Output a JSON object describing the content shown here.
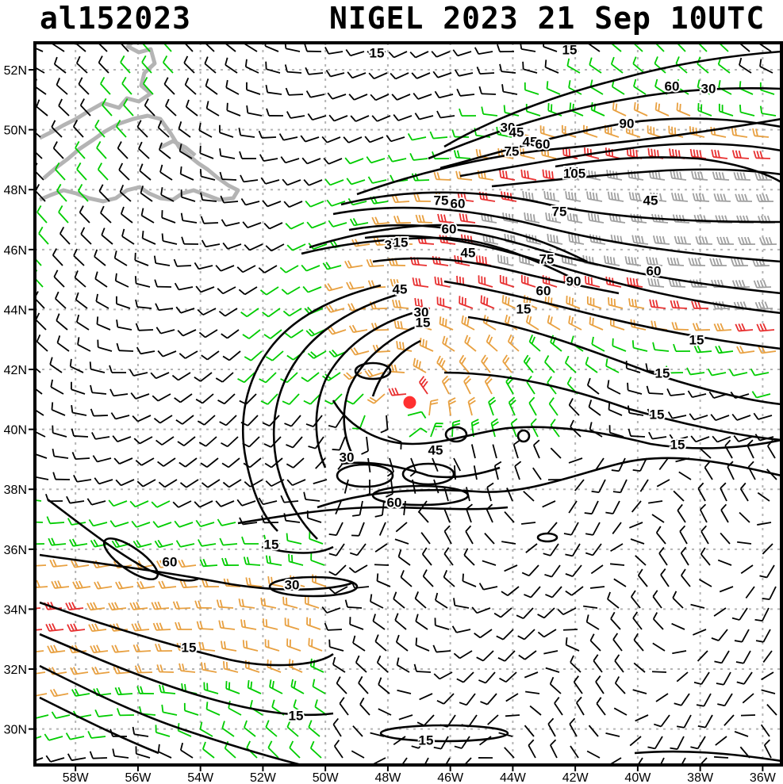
{
  "header": {
    "storm_id": "al152023",
    "storm_label": "NIGEL 2023 21 Sep 10UTC"
  },
  "map": {
    "lat_labels": [
      "52N",
      "50N",
      "48N",
      "46N",
      "44N",
      "42N",
      "40N",
      "38N",
      "36N",
      "34N",
      "32N",
      "30N"
    ],
    "lon_labels": [
      "58W",
      "56W",
      "54W",
      "52W",
      "50W",
      "48W",
      "46W",
      "44W",
      "42W",
      "40W",
      "38W",
      "36W"
    ],
    "contour_labels": [
      "15",
      "15",
      "30",
      "45",
      "60",
      "30",
      "45",
      "60",
      "75",
      "90",
      "75",
      "105",
      "75",
      "60",
      "45",
      "75",
      "60",
      "30",
      "15",
      "45",
      "60",
      "75",
      "90",
      "60",
      "45",
      "30",
      "15",
      "15",
      "15",
      "15",
      "15",
      "30",
      "45",
      "60",
      "15",
      "60",
      "30",
      "15",
      "15",
      "15",
      "15"
    ],
    "storm_center": {
      "lat": 40.9,
      "lon": -47.3
    },
    "colors": {
      "frame": "#000000",
      "grid": "#b4b4b4",
      "land": "#b4b4b4",
      "barb_weak": "#000000",
      "barb_15": "#00cc00",
      "barb_30": "#e8a040",
      "barb_50": "#e83030",
      "barb_65": "#a0a0a0",
      "storm_marker": "#ff3030"
    }
  }
}
